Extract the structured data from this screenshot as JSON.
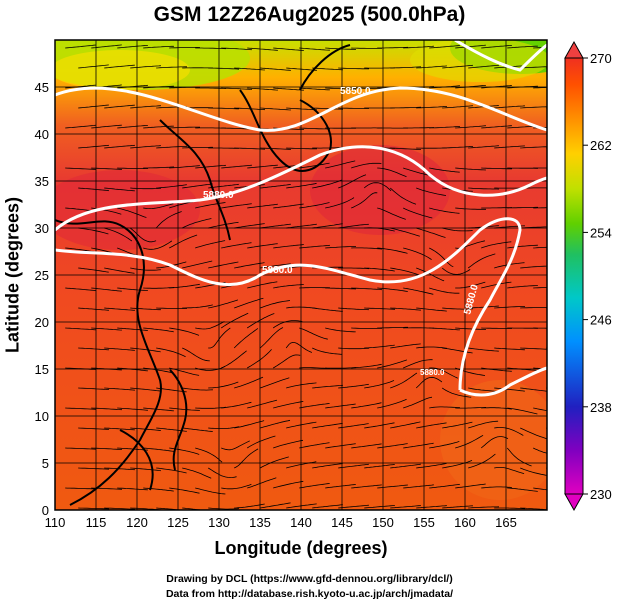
{
  "title": "GSM 12Z26Aug2025 (500.0hPa)",
  "xlabel": "Longitude (degrees)",
  "ylabel": "Latitude  (degrees)",
  "credits": [
    "Drawing by DCL (https://www.gfd-dennou.org/library/dcl/)",
    "Data from http://database.rish.kyoto-u.ac.jp/arch/jmadata/"
  ],
  "map": {
    "lon_range": [
      110,
      170
    ],
    "lat_range": [
      0,
      50
    ],
    "lon_ticks": [
      110,
      115,
      120,
      125,
      130,
      135,
      140,
      145,
      150,
      155,
      160,
      165
    ],
    "lat_ticks": [
      0,
      5,
      10,
      15,
      20,
      25,
      30,
      35,
      40,
      45
    ],
    "grid": true,
    "fields": [
      "temperature (color shading)",
      "wind streamlines",
      "geopotential height contours"
    ],
    "contour_labels": [
      "5850.0",
      "5880.0",
      "5880.0",
      "5880.0",
      "5880.0"
    ]
  },
  "colorbar": {
    "min": 230,
    "max": 270,
    "tick_labels": [
      "270",
      "262",
      "254",
      "246",
      "238",
      "230"
    ],
    "colors": [
      "#e000c0",
      "#8000c0",
      "#2020c0",
      "#0080ff",
      "#00c0c0",
      "#20c060",
      "#60d000",
      "#c0e000",
      "#ffd000",
      "#ff9000",
      "#ff5000",
      "#f03020"
    ]
  }
}
